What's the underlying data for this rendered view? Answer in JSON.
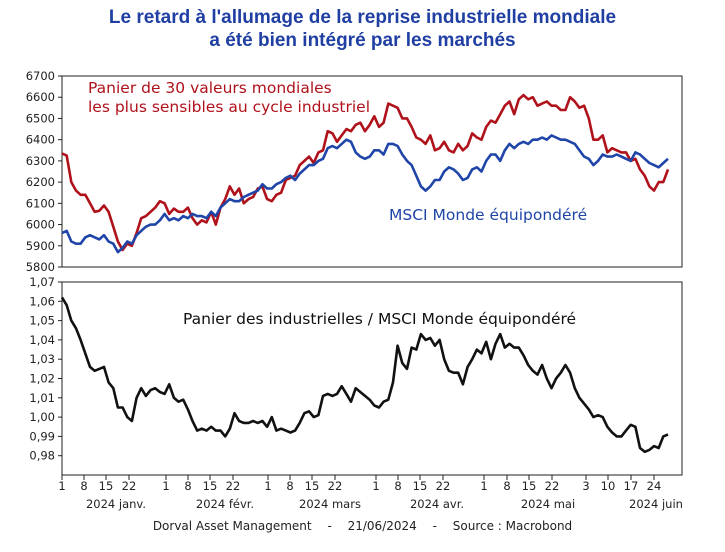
{
  "title_line1": "Le retard à l'allumage de la reprise industrielle mondiale",
  "title_line2": "a été bien intégré par les marchés",
  "footer": {
    "source_org": "Dorval Asset Management",
    "date": "21/06/2024",
    "source": "Source : Macrobond"
  },
  "colors": {
    "title": "#1f3fa3",
    "basket": "#b0121b",
    "msci": "#1f45a8",
    "ratio": "#111111"
  },
  "chart_data": [
    {
      "type": "line",
      "ylim": [
        5800,
        6700
      ],
      "yticks": [
        5800,
        5900,
        6000,
        6100,
        6200,
        6300,
        6400,
        6500,
        6600,
        6700
      ],
      "grid": false,
      "series": [
        {
          "name": "Panier de 30 valeurs mondiales les plus sensibles au cycle industriel",
          "label_lines": [
            "Panier de 30 valeurs mondiales",
            "les plus sensibles au cycle industriel"
          ],
          "color": "#b0121b",
          "values": [
            6335,
            6325,
            6200,
            6160,
            6140,
            6140,
            6100,
            6060,
            6065,
            6090,
            6060,
            5990,
            5920,
            5880,
            5910,
            5900,
            5960,
            6030,
            6040,
            6060,
            6080,
            6110,
            6100,
            6050,
            6075,
            6060,
            6060,
            6080,
            6030,
            6000,
            6020,
            6010,
            6060,
            6000,
            6080,
            6120,
            6180,
            6140,
            6170,
            6100,
            6120,
            6130,
            6170,
            6180,
            6120,
            6110,
            6140,
            6150,
            6210,
            6220,
            6230,
            6280,
            6300,
            6320,
            6290,
            6340,
            6350,
            6440,
            6430,
            6390,
            6420,
            6450,
            6440,
            6470,
            6480,
            6440,
            6470,
            6510,
            6460,
            6480,
            6570,
            6560,
            6550,
            6500,
            6500,
            6460,
            6410,
            6400,
            6380,
            6420,
            6350,
            6360,
            6390,
            6350,
            6340,
            6380,
            6350,
            6370,
            6430,
            6410,
            6400,
            6460,
            6490,
            6480,
            6520,
            6560,
            6580,
            6520,
            6590,
            6610,
            6590,
            6600,
            6560,
            6570,
            6580,
            6560,
            6560,
            6540,
            6540,
            6600,
            6580,
            6550,
            6560,
            6500,
            6400,
            6400,
            6420,
            6340,
            6360,
            6350,
            6340,
            6340,
            6300,
            6310,
            6260,
            6230,
            6180,
            6160,
            6200,
            6200,
            6260
          ]
        },
        {
          "name": "MSCI Monde équipondéré",
          "label_lines": [
            "MSCI Monde équipondéré"
          ],
          "color": "#1f45a8",
          "values": [
            5960,
            5970,
            5920,
            5910,
            5910,
            5940,
            5950,
            5940,
            5930,
            5950,
            5920,
            5910,
            5870,
            5890,
            5920,
            5910,
            5950,
            5970,
            5990,
            6000,
            6000,
            6020,
            6050,
            6020,
            6030,
            6020,
            6040,
            6030,
            6050,
            6040,
            6040,
            6030,
            6060,
            6040,
            6080,
            6100,
            6120,
            6110,
            6110,
            6130,
            6140,
            6150,
            6160,
            6190,
            6170,
            6170,
            6190,
            6200,
            6220,
            6230,
            6210,
            6240,
            6260,
            6280,
            6280,
            6300,
            6310,
            6360,
            6370,
            6360,
            6380,
            6400,
            6390,
            6340,
            6320,
            6310,
            6320,
            6350,
            6350,
            6330,
            6380,
            6380,
            6370,
            6330,
            6300,
            6280,
            6230,
            6180,
            6160,
            6180,
            6210,
            6210,
            6250,
            6270,
            6260,
            6240,
            6210,
            6220,
            6260,
            6270,
            6250,
            6300,
            6330,
            6330,
            6300,
            6350,
            6380,
            6360,
            6380,
            6390,
            6380,
            6400,
            6400,
            6410,
            6400,
            6420,
            6410,
            6400,
            6400,
            6390,
            6380,
            6350,
            6320,
            6310,
            6280,
            6300,
            6330,
            6320,
            6320,
            6330,
            6320,
            6310,
            6300,
            6340,
            6330,
            6310,
            6290,
            6280,
            6270,
            6290,
            6310
          ]
        }
      ]
    },
    {
      "type": "line",
      "ylim": [
        0.97,
        1.07
      ],
      "yticks": [
        "0,98",
        "0,99",
        "1,00",
        "1,01",
        "1,02",
        "1,03",
        "1,04",
        "1,05",
        "1,06",
        "1,07"
      ],
      "ytick_values": [
        0.98,
        0.99,
        1.0,
        1.01,
        1.02,
        1.03,
        1.04,
        1.05,
        1.06,
        1.07
      ],
      "grid": false,
      "series": [
        {
          "name": "Panier des industrielles / MSCI Monde équipondéré",
          "label_lines": [
            "Panier des industrielles / MSCI Monde équipondéré"
          ],
          "color": "#111111",
          "values": [
            1.062,
            1.058,
            1.05,
            1.046,
            1.04,
            1.033,
            1.026,
            1.024,
            1.025,
            1.026,
            1.018,
            1.015,
            1.005,
            1.005,
            1.0,
            0.998,
            1.01,
            1.015,
            1.011,
            1.014,
            1.015,
            1.013,
            1.012,
            1.017,
            1.01,
            1.008,
            1.009,
            1.004,
            0.998,
            0.993,
            0.994,
            0.993,
            0.995,
            0.993,
            0.993,
            0.99,
            0.994,
            1.002,
            0.998,
            0.997,
            0.997,
            0.998,
            0.997,
            0.998,
            0.995,
            1.0,
            0.993,
            0.994,
            0.993,
            0.992,
            0.993,
            0.997,
            1.002,
            1.003,
            1.0,
            1.001,
            1.011,
            1.012,
            1.011,
            1.012,
            1.016,
            1.012,
            1.008,
            1.015,
            1.013,
            1.011,
            1.009,
            1.006,
            1.005,
            1.008,
            1.009,
            1.018,
            1.037,
            1.028,
            1.025,
            1.036,
            1.035,
            1.043,
            1.04,
            1.041,
            1.037,
            1.04,
            1.03,
            1.024,
            1.023,
            1.023,
            1.017,
            1.026,
            1.03,
            1.035,
            1.033,
            1.039,
            1.03,
            1.038,
            1.043,
            1.036,
            1.038,
            1.036,
            1.036,
            1.032,
            1.027,
            1.024,
            1.022,
            1.027,
            1.02,
            1.015,
            1.02,
            1.023,
            1.027,
            1.023,
            1.015,
            1.01,
            1.007,
            1.004,
            1.0,
            1.001,
            1.0,
            0.995,
            0.992,
            0.99,
            0.99,
            0.993,
            0.996,
            0.995,
            0.984,
            0.982,
            0.983,
            0.985,
            0.984,
            0.99,
            0.991
          ]
        }
      ]
    }
  ],
  "x_axis": {
    "ticks": [
      {
        "label": "1",
        "month": 0
      },
      {
        "label": "8",
        "month": 0
      },
      {
        "label": "15",
        "month": 0
      },
      {
        "label": "22",
        "month": 0
      },
      {
        "label": "1",
        "month": 1
      },
      {
        "label": "8",
        "month": 1
      },
      {
        "label": "15",
        "month": 1
      },
      {
        "label": "22",
        "month": 1
      },
      {
        "label": "1",
        "month": 2
      },
      {
        "label": "8",
        "month": 2
      },
      {
        "label": "15",
        "month": 2
      },
      {
        "label": "22",
        "month": 2
      },
      {
        "label": "1",
        "month": 3
      },
      {
        "label": "8",
        "month": 3
      },
      {
        "label": "15",
        "month": 3
      },
      {
        "label": "22",
        "month": 3
      },
      {
        "label": "1",
        "month": 4
      },
      {
        "label": "8",
        "month": 4
      },
      {
        "label": "15",
        "month": 4
      },
      {
        "label": "22",
        "month": 4
      },
      {
        "label": "3",
        "month": 5
      },
      {
        "label": "10",
        "month": 5
      },
      {
        "label": "17",
        "month": 5
      },
      {
        "label": "24",
        "month": 5
      }
    ],
    "months": [
      "2024 janv.",
      "2024 févr.",
      "2024 mars",
      "2024 avr.",
      "2024 mai",
      "2024 juin"
    ]
  }
}
